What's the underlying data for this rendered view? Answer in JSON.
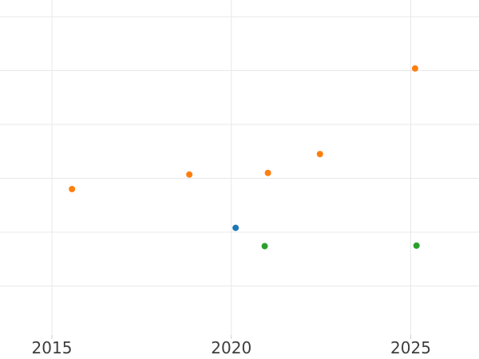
{
  "chart_data": {
    "type": "scatter",
    "title": "",
    "xlabel": "",
    "ylabel": "",
    "grid": true,
    "legend": false,
    "x_axis": {
      "range": [
        2013.554,
        2026.902
      ],
      "ticks": [
        {
          "value": 2015,
          "label": "2015"
        },
        {
          "value": 2020,
          "label": "2020"
        },
        {
          "value": 2025,
          "label": "2025"
        }
      ]
    },
    "y_axis": {
      "note": "no y tick labels visible in image; y values expressed in gridline units, bottom visible gridline = 0",
      "range": [
        -0.911,
        5.311
      ],
      "gridline_values": [
        0,
        1,
        2,
        3,
        4,
        5
      ],
      "ticks": []
    },
    "series": [
      {
        "name": "orange",
        "color": "#ff7f0e",
        "points": [
          {
            "x": 2015.56,
            "y": 1.8
          },
          {
            "x": 2018.83,
            "y": 2.07
          },
          {
            "x": 2021.02,
            "y": 2.1
          },
          {
            "x": 2022.47,
            "y": 2.45
          },
          {
            "x": 2025.12,
            "y": 4.04
          }
        ]
      },
      {
        "name": "blue",
        "color": "#1f77b4",
        "points": [
          {
            "x": 2020.12,
            "y": 1.08
          }
        ]
      },
      {
        "name": "green",
        "color": "#2ca02c",
        "points": [
          {
            "x": 2020.93,
            "y": 0.74
          },
          {
            "x": 2025.16,
            "y": 0.75
          }
        ]
      }
    ],
    "marker": {
      "radius_px": 4
    },
    "colors": {
      "background": "#ffffff",
      "grid": "#e8e8e8",
      "tick_mark": "#cccccc",
      "tick_label": "#3d3d3d"
    }
  }
}
